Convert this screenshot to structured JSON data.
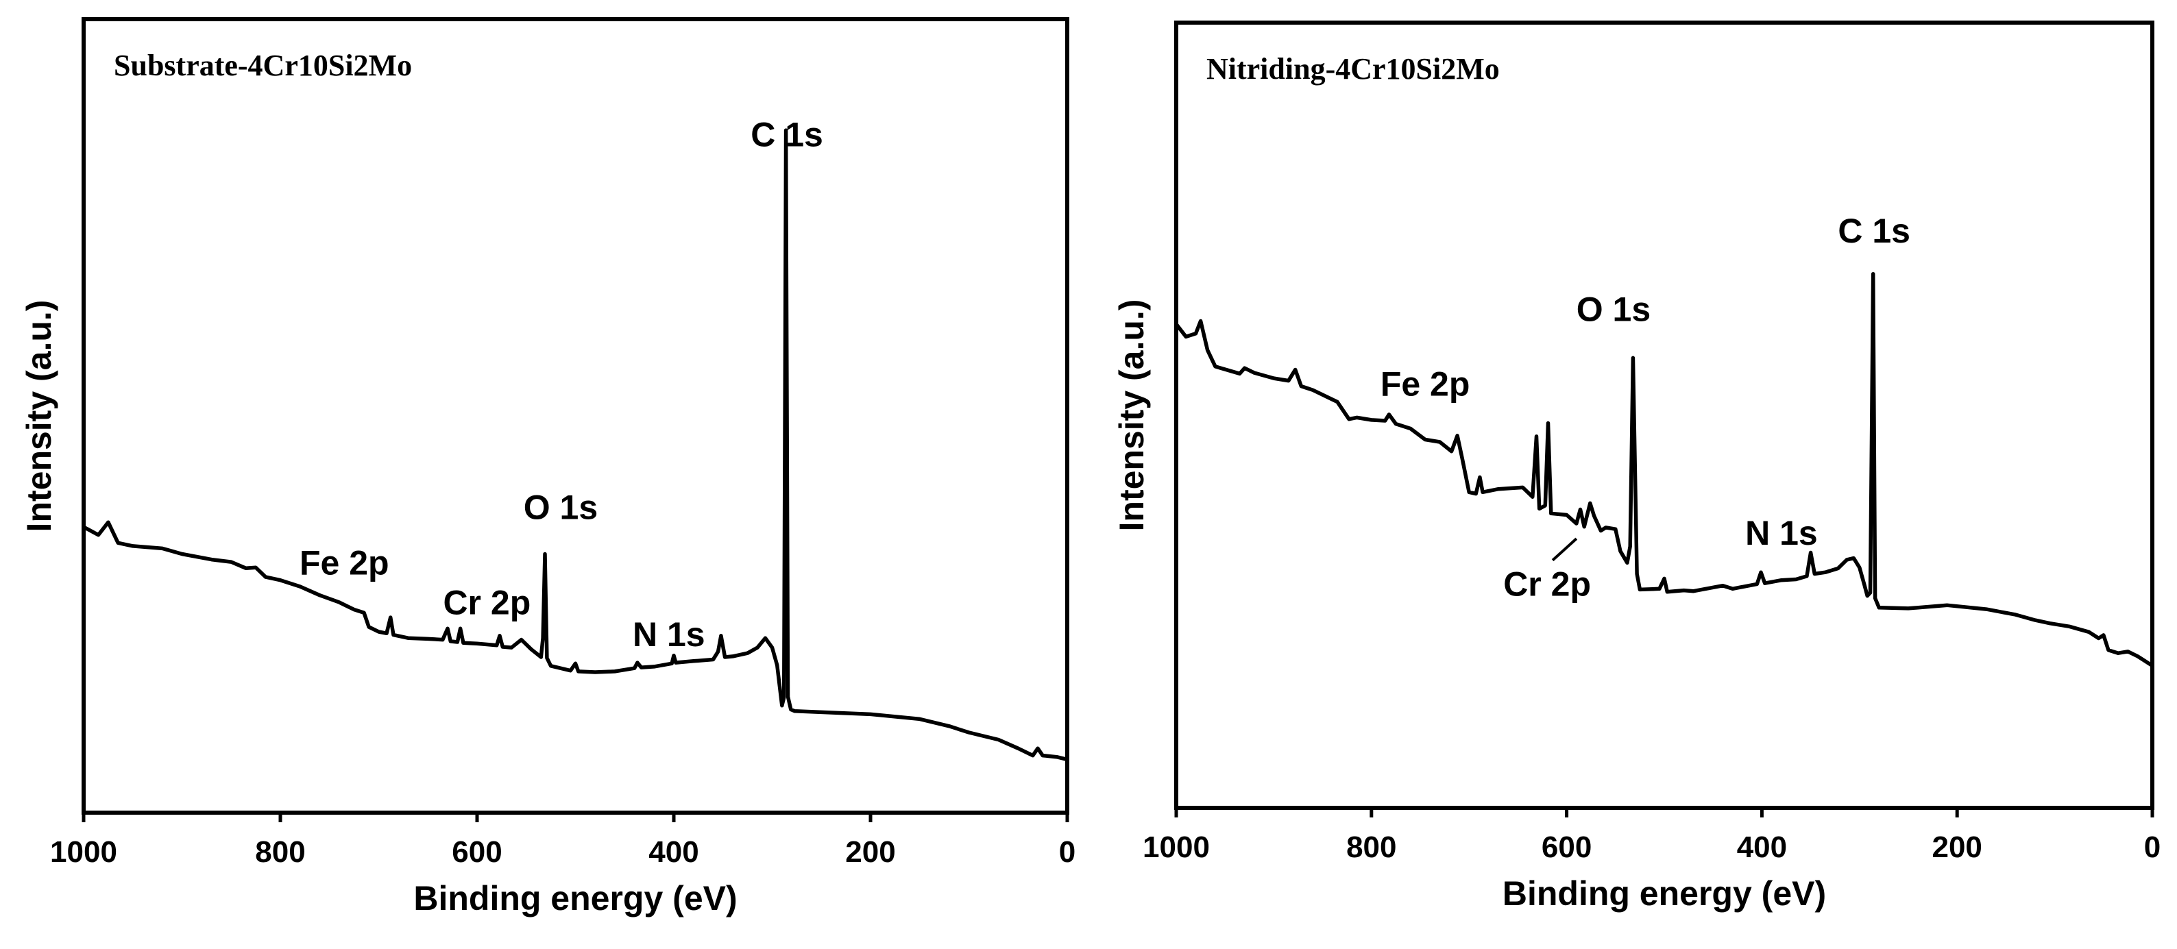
{
  "chart_data": [
    {
      "type": "line",
      "title": "Substrate-4Cr10Si2Mo",
      "xlabel": "Binding energy (eV)",
      "ylabel": "Intensity (a.u.)",
      "xlim": [
        1000,
        0
      ],
      "ylim": [
        0,
        100
      ],
      "xticks": [
        "1000",
        "800",
        "600",
        "400",
        "200",
        "0"
      ],
      "peak_labels": [
        {
          "text": "C 1s",
          "x": 285,
          "y": 84
        },
        {
          "text": "O 1s",
          "x": 515,
          "y": 37
        },
        {
          "text": "N 1s",
          "x": 405,
          "y": 21
        },
        {
          "text": "Cr 2p",
          "x": 590,
          "y": 25
        },
        {
          "text": "Fe 2p",
          "x": 735,
          "y": 30
        }
      ],
      "series": [
        {
          "name": "Substrate-4Cr10Si2Mo",
          "points": [
            [
              1000,
              36
            ],
            [
              985,
              35
            ],
            [
              975,
              36.6
            ],
            [
              965,
              34
            ],
            [
              950,
              33.6
            ],
            [
              920,
              33.3
            ],
            [
              900,
              32.6
            ],
            [
              870,
              31.9
            ],
            [
              850,
              31.6
            ],
            [
              835,
              30.8
            ],
            [
              825,
              30.9
            ],
            [
              815,
              29.7
            ],
            [
              800,
              29.3
            ],
            [
              780,
              28.5
            ],
            [
              760,
              27.4
            ],
            [
              740,
              26.5
            ],
            [
              725,
              25.6
            ],
            [
              715,
              25.2
            ],
            [
              710,
              23.4
            ],
            [
              700,
              22.8
            ],
            [
              692,
              22.6
            ],
            [
              688,
              24.6
            ],
            [
              685,
              22.4
            ],
            [
              670,
              22
            ],
            [
              650,
              21.9
            ],
            [
              635,
              21.8
            ],
            [
              630,
              23.2
            ],
            [
              627,
              21.6
            ],
            [
              620,
              21.5
            ],
            [
              617,
              23.2
            ],
            [
              614,
              21.4
            ],
            [
              600,
              21.3
            ],
            [
              580,
              21.1
            ],
            [
              577,
              22.3
            ],
            [
              574,
              20.9
            ],
            [
              565,
              20.8
            ],
            [
              555,
              21.8
            ],
            [
              545,
              20.6
            ],
            [
              535,
              19.6
            ],
            [
              533,
              22
            ],
            [
              531,
              32.6
            ],
            [
              529,
              19.5
            ],
            [
              525,
              18.5
            ],
            [
              505,
              17.9
            ],
            [
              500,
              18.8
            ],
            [
              497,
              17.8
            ],
            [
              480,
              17.7
            ],
            [
              460,
              17.8
            ],
            [
              440,
              18.2
            ],
            [
              437,
              18.9
            ],
            [
              433,
              18.3
            ],
            [
              420,
              18.4
            ],
            [
              402,
              18.8
            ],
            [
              400,
              19.8
            ],
            [
              398,
              18.9
            ],
            [
              380,
              19.1
            ],
            [
              360,
              19.3
            ],
            [
              355,
              20.3
            ],
            [
              352,
              22.3
            ],
            [
              348,
              19.6
            ],
            [
              340,
              19.7
            ],
            [
              325,
              20.1
            ],
            [
              315,
              20.8
            ],
            [
              307,
              22
            ],
            [
              300,
              20.8
            ],
            [
              295,
              18.6
            ],
            [
              290,
              13.5
            ],
            [
              288,
              14.5
            ],
            [
              286,
              86
            ],
            [
              284,
              14.6
            ],
            [
              281,
              13
            ],
            [
              277,
              12.8
            ],
            [
              200,
              12.4
            ],
            [
              150,
              11.8
            ],
            [
              120,
              10.9
            ],
            [
              100,
              10.1
            ],
            [
              70,
              9.2
            ],
            [
              50,
              8.1
            ],
            [
              35,
              7.2
            ],
            [
              30,
              8.1
            ],
            [
              25,
              7.2
            ],
            [
              10,
              7
            ],
            [
              0,
              6.7
            ]
          ]
        }
      ]
    },
    {
      "type": "line",
      "title": "Nitriding-4Cr10Si2Mo",
      "xlabel": "Binding energy (eV)",
      "ylabel": "Intensity (a.u.)",
      "xlim": [
        1000,
        0
      ],
      "ylim": [
        0,
        100
      ],
      "xticks": [
        "1000",
        "800",
        "600",
        "400",
        "200",
        "0"
      ],
      "peak_labels": [
        {
          "text": "C 1s",
          "x": 285,
          "y": 72
        },
        {
          "text": "O 1s",
          "x": 552,
          "y": 62
        },
        {
          "text": "N 1s",
          "x": 380,
          "y": 33.5
        },
        {
          "text": "Cr 2p",
          "x": 620,
          "y": 27
        },
        {
          "text": "Fe 2p",
          "x": 745,
          "y": 52.5
        }
      ],
      "series": [
        {
          "name": "Nitriding-4Cr10Si2Mo",
          "points": [
            [
              1000,
              61.6
            ],
            [
              990,
              60
            ],
            [
              980,
              60.4
            ],
            [
              975,
              62
            ],
            [
              968,
              58.3
            ],
            [
              960,
              56.2
            ],
            [
              935,
              55.3
            ],
            [
              930,
              56
            ],
            [
              920,
              55.4
            ],
            [
              900,
              54.7
            ],
            [
              885,
              54.4
            ],
            [
              878,
              55.8
            ],
            [
              872,
              53.7
            ],
            [
              860,
              53.2
            ],
            [
              845,
              52.3
            ],
            [
              835,
              51.7
            ],
            [
              823,
              49.5
            ],
            [
              815,
              49.7
            ],
            [
              800,
              49.4
            ],
            [
              786,
              49.3
            ],
            [
              782,
              50.1
            ],
            [
              775,
              48.9
            ],
            [
              760,
              48.3
            ],
            [
              745,
              46.9
            ],
            [
              730,
              46.6
            ],
            [
              718,
              45.4
            ],
            [
              712,
              47.4
            ],
            [
              707,
              44.5
            ],
            [
              700,
              40.2
            ],
            [
              693,
              40
            ],
            [
              689,
              42.1
            ],
            [
              686,
              40.2
            ],
            [
              670,
              40.6
            ],
            [
              645,
              40.8
            ],
            [
              635,
              39.6
            ],
            [
              631,
              47.3
            ],
            [
              628,
              38.1
            ],
            [
              622,
              38.5
            ],
            [
              619,
              49
            ],
            [
              616,
              37.5
            ],
            [
              600,
              37.3
            ],
            [
              590,
              36.2
            ],
            [
              586,
              38
            ],
            [
              582,
              35.8
            ],
            [
              576,
              38.8
            ],
            [
              572,
              37.2
            ],
            [
              565,
              35.3
            ],
            [
              560,
              35.7
            ],
            [
              550,
              35.5
            ],
            [
              545,
              32.7
            ],
            [
              538,
              31.2
            ],
            [
              535,
              33.3
            ],
            [
              532,
              57.3
            ],
            [
              528,
              29.8
            ],
            [
              525,
              27.8
            ],
            [
              505,
              27.9
            ],
            [
              500,
              29.2
            ],
            [
              497,
              27.5
            ],
            [
              480,
              27.7
            ],
            [
              470,
              27.6
            ],
            [
              440,
              28.3
            ],
            [
              430,
              27.9
            ],
            [
              405,
              28.5
            ],
            [
              401,
              30
            ],
            [
              397,
              28.6
            ],
            [
              380,
              29
            ],
            [
              365,
              29.1
            ],
            [
              354,
              29.5
            ],
            [
              350,
              32.5
            ],
            [
              346,
              29.8
            ],
            [
              335,
              30
            ],
            [
              322,
              30.5
            ],
            [
              313,
              31.6
            ],
            [
              306,
              31.8
            ],
            [
              300,
              30.6
            ],
            [
              295,
              28.4
            ],
            [
              292,
              27
            ],
            [
              289,
              27.4
            ],
            [
              286,
              68
            ],
            [
              284,
              26.7
            ],
            [
              280,
              25.5
            ],
            [
              250,
              25.4
            ],
            [
              210,
              25.8
            ],
            [
              170,
              25.3
            ],
            [
              140,
              24.6
            ],
            [
              120,
              23.9
            ],
            [
              105,
              23.5
            ],
            [
              85,
              23.1
            ],
            [
              65,
              22.4
            ],
            [
              55,
              21.6
            ],
            [
              50,
              22
            ],
            [
              45,
              20.1
            ],
            [
              35,
              19.7
            ],
            [
              25,
              19.9
            ],
            [
              15,
              19.3
            ],
            [
              0,
              18.1
            ]
          ]
        }
      ]
    }
  ]
}
